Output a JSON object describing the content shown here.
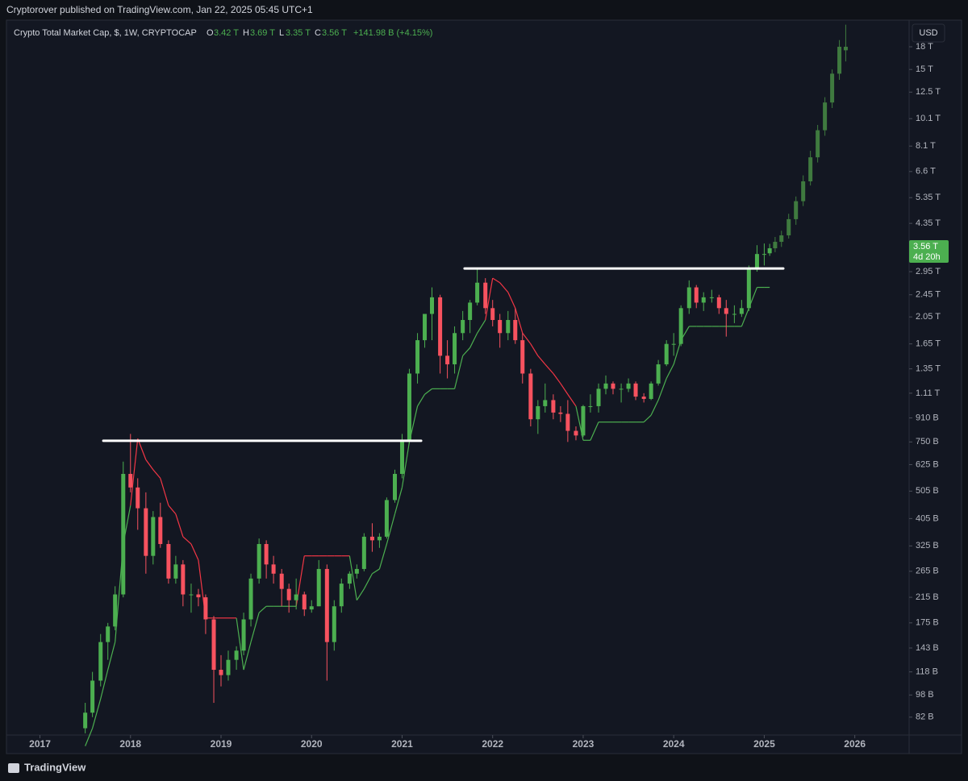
{
  "header": {
    "published": "Cryptorover published on TradingView.com, Jan 22, 2025 05:45 UTC+1"
  },
  "footer": {
    "brand": "TradingView"
  },
  "chart_data": {
    "type": "candlestick",
    "legend": {
      "symbol": "Crypto Total Market Cap, $, 1W, CRYPTOCAP",
      "o_label": "O",
      "o": "3.42 T",
      "h_label": "H",
      "h": "3.69 T",
      "l_label": "L",
      "l": "3.35 T",
      "c_label": "C",
      "c": "3.56 T",
      "change": "+141.98 B (+4.15%)"
    },
    "currency": "USD",
    "last_price": {
      "value": 3560,
      "label": "3.56 T",
      "countdown": "4d 20h"
    },
    "log_scale": true,
    "up_color": "#4caf50",
    "down_color": "#f7525f",
    "projection_color": "#3f7a3f",
    "trend_up_color": "#4caf50",
    "trend_down_color": "#f23645",
    "level_color": "#ffffff",
    "x": [
      2017.5,
      2017.58,
      2017.67,
      2017.75,
      2017.83,
      2017.92,
      2018.0,
      2018.08,
      2018.17,
      2018.25,
      2018.33,
      2018.42,
      2018.5,
      2018.58,
      2018.67,
      2018.75,
      2018.83,
      2018.92,
      2019.0,
      2019.08,
      2019.17,
      2019.25,
      2019.33,
      2019.42,
      2019.5,
      2019.58,
      2019.67,
      2019.75,
      2019.83,
      2019.92,
      2020.0,
      2020.08,
      2020.17,
      2020.25,
      2020.33,
      2020.42,
      2020.5,
      2020.58,
      2020.67,
      2020.75,
      2020.83,
      2020.92,
      2021.0,
      2021.08,
      2021.17,
      2021.25,
      2021.33,
      2021.42,
      2021.5,
      2021.58,
      2021.67,
      2021.75,
      2021.83,
      2021.92,
      2022.0,
      2022.08,
      2022.17,
      2022.25,
      2022.33,
      2022.42,
      2022.5,
      2022.58,
      2022.67,
      2022.75,
      2022.83,
      2022.92,
      2023.0,
      2023.08,
      2023.17,
      2023.25,
      2023.33,
      2023.42,
      2023.5,
      2023.58,
      2023.67,
      2023.75,
      2023.83,
      2023.92,
      2024.0,
      2024.08,
      2024.17,
      2024.25,
      2024.33,
      2024.42,
      2024.5,
      2024.58,
      2024.67,
      2024.75,
      2024.83,
      2024.92,
      2025.0,
      2025.06
    ],
    "ohlc": [
      [
        75,
        92,
        72,
        85
      ],
      [
        85,
        118,
        82,
        110
      ],
      [
        110,
        160,
        105,
        150
      ],
      [
        150,
        175,
        130,
        170
      ],
      [
        170,
        235,
        165,
        220
      ],
      [
        220,
        640,
        215,
        580
      ],
      [
        580,
        800,
        500,
        520
      ],
      [
        520,
        560,
        370,
        440
      ],
      [
        440,
        500,
        260,
        300
      ],
      [
        300,
        430,
        280,
        410
      ],
      [
        410,
        460,
        320,
        330
      ],
      [
        330,
        340,
        240,
        250
      ],
      [
        250,
        300,
        240,
        280
      ],
      [
        280,
        290,
        200,
        220
      ],
      [
        220,
        240,
        190,
        220
      ],
      [
        220,
        230,
        200,
        215
      ],
      [
        215,
        220,
        160,
        180
      ],
      [
        180,
        185,
        92,
        120
      ],
      [
        120,
        135,
        105,
        115
      ],
      [
        115,
        140,
        110,
        130
      ],
      [
        130,
        145,
        120,
        140
      ],
      [
        140,
        190,
        135,
        180
      ],
      [
        180,
        260,
        170,
        250
      ],
      [
        250,
        345,
        240,
        330
      ],
      [
        330,
        340,
        250,
        280
      ],
      [
        280,
        300,
        240,
        260
      ],
      [
        260,
        270,
        200,
        230
      ],
      [
        230,
        240,
        190,
        210
      ],
      [
        210,
        250,
        195,
        220
      ],
      [
        220,
        225,
        185,
        195
      ],
      [
        195,
        210,
        190,
        200
      ],
      [
        200,
        290,
        200,
        270
      ],
      [
        270,
        280,
        110,
        150
      ],
      [
        150,
        210,
        140,
        200
      ],
      [
        200,
        250,
        190,
        240
      ],
      [
        240,
        265,
        230,
        260
      ],
      [
        260,
        280,
        250,
        270
      ],
      [
        270,
        360,
        265,
        350
      ],
      [
        350,
        390,
        310,
        340
      ],
      [
        340,
        360,
        320,
        350
      ],
      [
        350,
        480,
        345,
        470
      ],
      [
        470,
        600,
        460,
        580
      ],
      [
        580,
        800,
        560,
        760
      ],
      [
        760,
        1350,
        740,
        1300
      ],
      [
        1300,
        1800,
        1200,
        1700
      ],
      [
        1700,
        2100,
        1600,
        2100
      ],
      [
        2100,
        2600,
        1700,
        2400
      ],
      [
        2400,
        2450,
        1300,
        1500
      ],
      [
        1500,
        1700,
        1250,
        1400
      ],
      [
        1400,
        1900,
        1300,
        1800
      ],
      [
        1800,
        2150,
        1700,
        2000
      ],
      [
        2000,
        2350,
        1800,
        2300
      ],
      [
        2300,
        3000,
        2250,
        2700
      ],
      [
        2700,
        2800,
        2100,
        2200
      ],
      [
        2200,
        2350,
        1900,
        2000
      ],
      [
        2000,
        2100,
        1600,
        1800
      ],
      [
        1800,
        2150,
        1700,
        2000
      ],
      [
        2000,
        2200,
        1650,
        1700
      ],
      [
        1700,
        1800,
        1200,
        1300
      ],
      [
        1300,
        1350,
        850,
        900
      ],
      [
        900,
        1050,
        800,
        1000
      ],
      [
        1000,
        1200,
        950,
        1050
      ],
      [
        1050,
        1100,
        900,
        950
      ],
      [
        950,
        1000,
        880,
        940
      ],
      [
        940,
        1050,
        750,
        820
      ],
      [
        820,
        850,
        760,
        790
      ],
      [
        790,
        1010,
        780,
        1000
      ],
      [
        1000,
        1100,
        950,
        1000
      ],
      [
        1000,
        1200,
        950,
        1150
      ],
      [
        1150,
        1280,
        1100,
        1200
      ],
      [
        1200,
        1220,
        1100,
        1150
      ],
      [
        1150,
        1200,
        1030,
        1150
      ],
      [
        1150,
        1250,
        1120,
        1200
      ],
      [
        1200,
        1220,
        1050,
        1080
      ],
      [
        1080,
        1110,
        1030,
        1060
      ],
      [
        1060,
        1220,
        1050,
        1200
      ],
      [
        1200,
        1450,
        1180,
        1400
      ],
      [
        1400,
        1700,
        1380,
        1650
      ],
      [
        1650,
        1800,
        1500,
        1650
      ],
      [
        1650,
        2250,
        1620,
        2200
      ],
      [
        2200,
        2750,
        2100,
        2600
      ],
      [
        2600,
        2650,
        2200,
        2300
      ],
      [
        2300,
        2500,
        2150,
        2400
      ],
      [
        2400,
        2550,
        2300,
        2400
      ],
      [
        2400,
        2450,
        2100,
        2200
      ],
      [
        2200,
        2350,
        1750,
        2100
      ],
      [
        2100,
        2250,
        1950,
        2100
      ],
      [
        2100,
        2350,
        2050,
        2200
      ],
      [
        2200,
        3100,
        2150,
        3000
      ],
      [
        3000,
        3650,
        2950,
        3400
      ],
      [
        3400,
        3700,
        3100,
        3400
      ],
      [
        3420,
        3690,
        3350,
        3560
      ]
    ],
    "trend": [
      65,
      75,
      95,
      120,
      150,
      330,
      450,
      770,
      650,
      600,
      560,
      450,
      420,
      350,
      330,
      290,
      182,
      182,
      182,
      182,
      182,
      120,
      150,
      190,
      200,
      200,
      200,
      200,
      200,
      300,
      300,
      300,
      300,
      300,
      300,
      300,
      210,
      230,
      260,
      270,
      330,
      420,
      520,
      750,
      1000,
      1100,
      1150,
      1150,
      1150,
      1150,
      1500,
      1600,
      1800,
      2000,
      2800,
      2700,
      2500,
      2200,
      1800,
      1650,
      1500,
      1400,
      1300,
      1200,
      1100,
      1000,
      760,
      760,
      880,
      880,
      880,
      880,
      880,
      880,
      880,
      930,
      1050,
      1250,
      1400,
      1700,
      1900,
      1900,
      1900,
      1900,
      1900,
      1900,
      1900,
      1900,
      2200,
      2600,
      2600,
      2600
    ],
    "projection": {
      "x": [
        2025.12,
        2025.19,
        2025.27,
        2025.35,
        2025.43,
        2025.51,
        2025.59,
        2025.67,
        2025.75,
        2025.83,
        2025.9
      ],
      "ohlc": [
        [
          3560,
          3900,
          3450,
          3750
        ],
        [
          3750,
          4100,
          3600,
          3950
        ],
        [
          3950,
          4700,
          3850,
          4500
        ],
        [
          4500,
          5400,
          4300,
          5200
        ],
        [
          5200,
          6400,
          5000,
          6100
        ],
        [
          6100,
          7800,
          5900,
          7400
        ],
        [
          7400,
          9600,
          7100,
          9200
        ],
        [
          9200,
          12000,
          8800,
          11500
        ],
        [
          11500,
          15000,
          11000,
          14500
        ],
        [
          14500,
          19000,
          13800,
          18000
        ],
        [
          18000,
          21500,
          16000,
          17500
        ]
      ]
    },
    "levels": [
      {
        "x": [
          2017.7,
          2021.21
        ],
        "value": 757
      },
      {
        "x": [
          2021.69,
          2025.21
        ],
        "value": 3025
      }
    ],
    "xlim": [
      2016.63,
      2026.6
    ],
    "xticks": [
      2017,
      2018,
      2019,
      2020,
      2021,
      2022,
      2023,
      2024,
      2025,
      2026
    ],
    "ylim": [
      71,
      22300
    ],
    "yticks": [
      {
        "value": 18000,
        "label": "18 T"
      },
      {
        "value": 15000,
        "label": "15 T"
      },
      {
        "value": 12500,
        "label": "12.5 T"
      },
      {
        "value": 10100,
        "label": "10.1 T"
      },
      {
        "value": 8100,
        "label": "8.1 T"
      },
      {
        "value": 6600,
        "label": "6.6 T"
      },
      {
        "value": 5350,
        "label": "5.35 T"
      },
      {
        "value": 4350,
        "label": "4.35 T"
      },
      {
        "value": 2950,
        "label": "2.95 T"
      },
      {
        "value": 2450,
        "label": "2.45 T"
      },
      {
        "value": 2050,
        "label": "2.05 T"
      },
      {
        "value": 1650,
        "label": "1.65 T"
      },
      {
        "value": 1350,
        "label": "1.35 T"
      },
      {
        "value": 1110,
        "label": "1.11 T"
      },
      {
        "value": 910,
        "label": "910 B"
      },
      {
        "value": 750,
        "label": "750 B"
      },
      {
        "value": 625,
        "label": "625 B"
      },
      {
        "value": 505,
        "label": "505 B"
      },
      {
        "value": 405,
        "label": "405 B"
      },
      {
        "value": 325,
        "label": "325 B"
      },
      {
        "value": 265,
        "label": "265 B"
      },
      {
        "value": 215,
        "label": "215 B"
      },
      {
        "value": 175,
        "label": "175 B"
      },
      {
        "value": 143,
        "label": "143 B"
      },
      {
        "value": 118,
        "label": "118 B"
      },
      {
        "value": 98,
        "label": "98 B"
      },
      {
        "value": 82,
        "label": "82 B"
      }
    ]
  }
}
